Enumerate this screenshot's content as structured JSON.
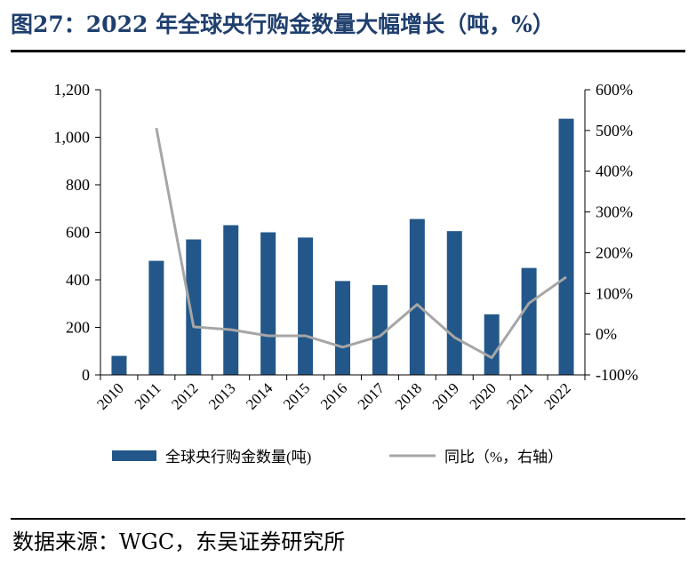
{
  "header": {
    "title": "图27：2022 年全球央行购金数量大幅增长（吨，%）"
  },
  "footer": {
    "source": "数据来源：WGC，东吴证券研究所"
  },
  "chart_data": {
    "type": "bar",
    "categories": [
      "2010",
      "2011",
      "2012",
      "2013",
      "2014",
      "2015",
      "2016",
      "2017",
      "2018",
      "2019",
      "2020",
      "2021",
      "2022"
    ],
    "series": [
      {
        "name": "全球央行购金数量(吨)",
        "kind": "bar",
        "axis": "left",
        "color": "#235789",
        "values": [
          80,
          480,
          570,
          630,
          600,
          578,
          395,
          378,
          656,
          605,
          255,
          450,
          1078
        ]
      },
      {
        "name": "同比（%，右轴）",
        "kind": "line",
        "axis": "right",
        "color": "#a6a6a6",
        "values": [
          null,
          506,
          18,
          11,
          -4,
          -4,
          -32,
          -5,
          73,
          -8,
          -58,
          76,
          140
        ]
      }
    ],
    "left_axis": {
      "ylim": [
        0,
        1200
      ],
      "ticks": [
        0,
        200,
        400,
        600,
        800,
        1000,
        1200
      ],
      "tick_labels": [
        "0",
        "200",
        "400",
        "600",
        "800",
        "1,000",
        "1,200"
      ]
    },
    "right_axis": {
      "ylim": [
        -100,
        600
      ],
      "ticks": [
        -100,
        0,
        100,
        200,
        300,
        400,
        500,
        600
      ],
      "tick_labels": [
        "-100%",
        "0%",
        "100%",
        "200%",
        "300%",
        "400%",
        "500%",
        "600%"
      ]
    },
    "legend": {
      "position": "bottom",
      "bar_label": "全球央行购金数量(吨)",
      "line_label": "同比（%，右轴）"
    }
  }
}
